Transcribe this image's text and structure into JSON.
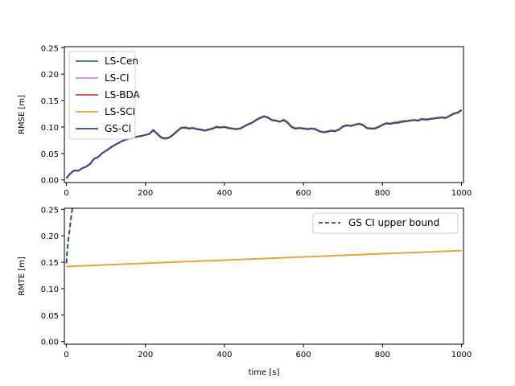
{
  "chart_data": [
    {
      "type": "line",
      "ylabel": "RMSE [m]",
      "xlabel": "",
      "xlim": [
        -5,
        1005
      ],
      "ylim": [
        -0.005,
        0.252
      ],
      "xticks": [
        0,
        200,
        400,
        600,
        800,
        1000
      ],
      "yticks": [
        0.0,
        0.05,
        0.1,
        0.15,
        0.2,
        0.25
      ],
      "ytick_labels": [
        "0.00",
        "0.05",
        "0.10",
        "0.15",
        "0.20",
        "0.25"
      ],
      "grid": false,
      "legend_position": "upper-left",
      "x": [
        0,
        10,
        20,
        30,
        40,
        50,
        60,
        70,
        80,
        90,
        100,
        110,
        120,
        130,
        140,
        150,
        160,
        170,
        180,
        190,
        200,
        210,
        220,
        230,
        240,
        250,
        260,
        270,
        280,
        290,
        300,
        310,
        320,
        330,
        340,
        350,
        360,
        370,
        380,
        390,
        400,
        410,
        420,
        430,
        440,
        450,
        460,
        470,
        480,
        490,
        500,
        510,
        520,
        530,
        540,
        550,
        560,
        570,
        580,
        590,
        600,
        610,
        620,
        630,
        640,
        650,
        660,
        670,
        680,
        690,
        700,
        710,
        720,
        730,
        740,
        750,
        760,
        770,
        780,
        790,
        800,
        810,
        820,
        830,
        840,
        850,
        860,
        870,
        880,
        890,
        900,
        910,
        920,
        930,
        940,
        950,
        960,
        970,
        980,
        990,
        1000
      ],
      "series": [
        {
          "name": "LS-Cen",
          "color": "#3a7a55",
          "values": [
            0.003,
            0.012,
            0.018,
            0.017,
            0.022,
            0.025,
            0.03,
            0.04,
            0.043,
            0.05,
            0.055,
            0.06,
            0.065,
            0.069,
            0.073,
            0.076,
            0.078,
            0.08,
            0.082,
            0.083,
            0.085,
            0.087,
            0.094,
            0.087,
            0.08,
            0.078,
            0.08,
            0.085,
            0.092,
            0.098,
            0.099,
            0.097,
            0.098,
            0.096,
            0.095,
            0.093,
            0.095,
            0.097,
            0.1,
            0.099,
            0.1,
            0.098,
            0.097,
            0.096,
            0.097,
            0.101,
            0.105,
            0.108,
            0.113,
            0.117,
            0.12,
            0.118,
            0.113,
            0.112,
            0.11,
            0.113,
            0.108,
            0.1,
            0.097,
            0.098,
            0.097,
            0.096,
            0.097,
            0.096,
            0.092,
            0.09,
            0.091,
            0.093,
            0.092,
            0.095,
            0.101,
            0.103,
            0.102,
            0.104,
            0.106,
            0.104,
            0.098,
            0.097,
            0.097,
            0.1,
            0.104,
            0.107,
            0.106,
            0.108,
            0.108,
            0.11,
            0.111,
            0.112,
            0.113,
            0.112,
            0.115,
            0.114,
            0.115,
            0.116,
            0.117,
            0.118,
            0.117,
            0.121,
            0.125,
            0.127,
            0.132
          ]
        },
        {
          "name": "LS-CI",
          "color": "#c98fd3",
          "values": [
            0.003,
            0.012,
            0.018,
            0.017,
            0.022,
            0.025,
            0.03,
            0.04,
            0.043,
            0.05,
            0.055,
            0.06,
            0.065,
            0.069,
            0.073,
            0.076,
            0.078,
            0.08,
            0.082,
            0.083,
            0.085,
            0.087,
            0.094,
            0.087,
            0.08,
            0.078,
            0.08,
            0.085,
            0.092,
            0.098,
            0.099,
            0.097,
            0.098,
            0.096,
            0.095,
            0.093,
            0.095,
            0.097,
            0.1,
            0.099,
            0.1,
            0.098,
            0.097,
            0.096,
            0.097,
            0.101,
            0.105,
            0.108,
            0.113,
            0.117,
            0.12,
            0.118,
            0.113,
            0.112,
            0.11,
            0.113,
            0.108,
            0.1,
            0.097,
            0.098,
            0.097,
            0.096,
            0.097,
            0.096,
            0.092,
            0.09,
            0.091,
            0.093,
            0.092,
            0.095,
            0.101,
            0.103,
            0.102,
            0.104,
            0.106,
            0.104,
            0.098,
            0.097,
            0.097,
            0.1,
            0.104,
            0.107,
            0.106,
            0.108,
            0.108,
            0.11,
            0.111,
            0.112,
            0.113,
            0.112,
            0.115,
            0.114,
            0.115,
            0.116,
            0.117,
            0.118,
            0.117,
            0.121,
            0.125,
            0.127,
            0.132
          ]
        },
        {
          "name": "LS-BDA",
          "color": "#d9443a",
          "values": [
            0.003,
            0.012,
            0.018,
            0.017,
            0.022,
            0.025,
            0.03,
            0.04,
            0.043,
            0.05,
            0.055,
            0.06,
            0.065,
            0.069,
            0.073,
            0.076,
            0.078,
            0.08,
            0.082,
            0.083,
            0.085,
            0.087,
            0.094,
            0.087,
            0.08,
            0.078,
            0.08,
            0.085,
            0.092,
            0.098,
            0.099,
            0.097,
            0.098,
            0.096,
            0.095,
            0.093,
            0.095,
            0.097,
            0.1,
            0.099,
            0.1,
            0.098,
            0.097,
            0.096,
            0.097,
            0.101,
            0.105,
            0.108,
            0.113,
            0.117,
            0.12,
            0.118,
            0.113,
            0.112,
            0.11,
            0.113,
            0.108,
            0.1,
            0.097,
            0.098,
            0.097,
            0.096,
            0.097,
            0.096,
            0.092,
            0.09,
            0.091,
            0.093,
            0.092,
            0.095,
            0.101,
            0.103,
            0.102,
            0.104,
            0.106,
            0.104,
            0.098,
            0.097,
            0.097,
            0.1,
            0.104,
            0.107,
            0.106,
            0.108,
            0.108,
            0.11,
            0.111,
            0.112,
            0.113,
            0.112,
            0.115,
            0.114,
            0.115,
            0.116,
            0.117,
            0.118,
            0.117,
            0.121,
            0.125,
            0.127,
            0.132
          ]
        },
        {
          "name": "LS-SCI",
          "color": "#e8a33d",
          "values": [
            0.003,
            0.012,
            0.018,
            0.017,
            0.022,
            0.025,
            0.03,
            0.04,
            0.043,
            0.05,
            0.055,
            0.06,
            0.065,
            0.069,
            0.073,
            0.076,
            0.078,
            0.08,
            0.082,
            0.083,
            0.085,
            0.087,
            0.095,
            0.088,
            0.081,
            0.079,
            0.081,
            0.086,
            0.093,
            0.099,
            0.1,
            0.098,
            0.099,
            0.097,
            0.096,
            0.094,
            0.096,
            0.098,
            0.101,
            0.1,
            0.101,
            0.099,
            0.098,
            0.097,
            0.098,
            0.102,
            0.106,
            0.109,
            0.114,
            0.118,
            0.121,
            0.119,
            0.114,
            0.113,
            0.111,
            0.115,
            0.11,
            0.101,
            0.098,
            0.099,
            0.098,
            0.097,
            0.098,
            0.097,
            0.093,
            0.091,
            0.092,
            0.094,
            0.093,
            0.096,
            0.102,
            0.104,
            0.103,
            0.105,
            0.107,
            0.105,
            0.099,
            0.098,
            0.098,
            0.101,
            0.105,
            0.108,
            0.107,
            0.109,
            0.11,
            0.112,
            0.112,
            0.113,
            0.114,
            0.113,
            0.116,
            0.115,
            0.116,
            0.117,
            0.118,
            0.119,
            0.118,
            0.122,
            0.126,
            0.128,
            0.133
          ]
        },
        {
          "name": "GS-CI",
          "color": "#2d4a8f",
          "values": [
            0.003,
            0.012,
            0.018,
            0.017,
            0.022,
            0.025,
            0.03,
            0.04,
            0.043,
            0.05,
            0.055,
            0.06,
            0.065,
            0.069,
            0.073,
            0.076,
            0.078,
            0.08,
            0.082,
            0.083,
            0.085,
            0.087,
            0.094,
            0.087,
            0.08,
            0.078,
            0.08,
            0.085,
            0.092,
            0.098,
            0.099,
            0.097,
            0.098,
            0.096,
            0.095,
            0.093,
            0.095,
            0.097,
            0.1,
            0.099,
            0.1,
            0.098,
            0.097,
            0.096,
            0.097,
            0.101,
            0.105,
            0.108,
            0.113,
            0.117,
            0.12,
            0.118,
            0.113,
            0.112,
            0.11,
            0.113,
            0.108,
            0.1,
            0.097,
            0.098,
            0.097,
            0.096,
            0.097,
            0.096,
            0.092,
            0.09,
            0.091,
            0.093,
            0.092,
            0.095,
            0.101,
            0.103,
            0.102,
            0.104,
            0.106,
            0.104,
            0.098,
            0.097,
            0.097,
            0.1,
            0.104,
            0.107,
            0.106,
            0.108,
            0.108,
            0.11,
            0.111,
            0.112,
            0.113,
            0.112,
            0.115,
            0.114,
            0.115,
            0.116,
            0.117,
            0.118,
            0.117,
            0.121,
            0.125,
            0.127,
            0.132
          ]
        }
      ]
    },
    {
      "type": "line",
      "ylabel": "RMTE [m]",
      "xlabel": "time [s]",
      "xlim": [
        -5,
        1005
      ],
      "ylim": [
        -0.005,
        0.252
      ],
      "xticks": [
        0,
        200,
        400,
        600,
        800,
        1000
      ],
      "yticks": [
        0.0,
        0.05,
        0.1,
        0.15,
        0.2,
        0.25
      ],
      "ytick_labels": [
        "0.00",
        "0.05",
        "0.10",
        "0.15",
        "0.20",
        "0.25"
      ],
      "grid": false,
      "legend_position": "upper-right",
      "series": [
        {
          "name": "",
          "color": "#e8a33d",
          "style": "solid",
          "x": [
            0,
            100,
            200,
            300,
            400,
            500,
            600,
            700,
            800,
            900,
            1000
          ],
          "values": [
            0.142,
            0.145,
            0.148,
            0.151,
            0.154,
            0.157,
            0.16,
            0.163,
            0.166,
            0.169,
            0.172
          ]
        },
        {
          "name": "GS CI upper bound",
          "color": "#2d4a8f",
          "style": "dashed",
          "x": [
            0,
            2,
            4,
            6,
            8,
            10,
            12,
            14,
            16
          ],
          "values": [
            0.148,
            0.17,
            0.185,
            0.198,
            0.21,
            0.222,
            0.235,
            0.246,
            0.255
          ]
        }
      ]
    }
  ]
}
